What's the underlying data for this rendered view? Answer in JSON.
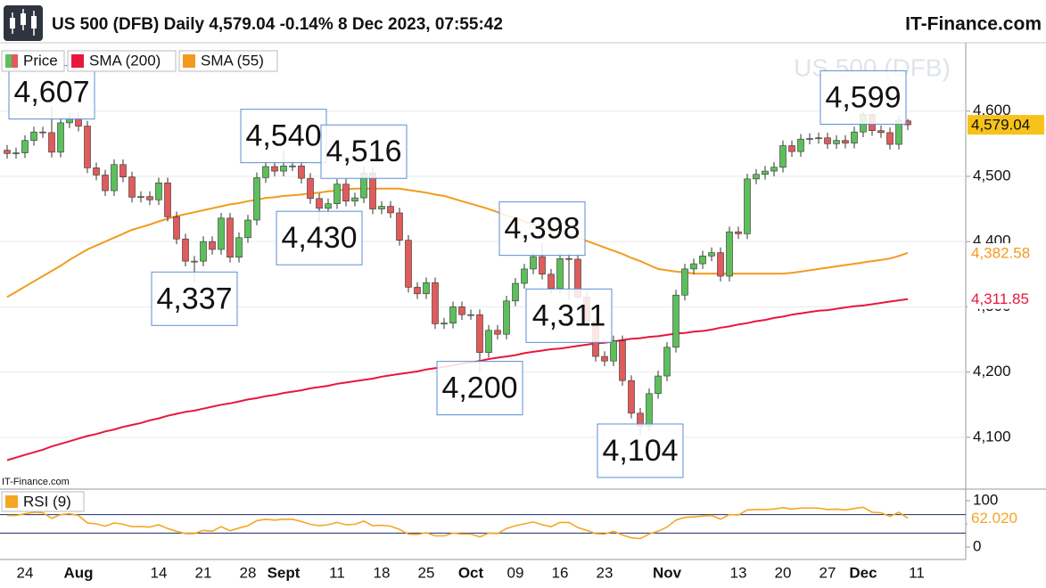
{
  "header": {
    "title": "US 500 (DFB) Daily 4,579.04 -0.14% 8 Dec 2023, 07:55:42",
    "brand": "IT-Finance.com"
  },
  "chart_data": [
    {
      "type": "candlestick",
      "name": "Price",
      "watermark": "US 500 (DFB)",
      "source": "IT-Finance.com",
      "up_color": "#5cbf5c",
      "down_color": "#e05b5b",
      "categories": [
        null,
        null,
        "24",
        null,
        null,
        null,
        null,
        null,
        "Aug",
        null,
        null,
        null,
        null,
        null,
        null,
        null,
        null,
        "14",
        null,
        null,
        null,
        null,
        "21",
        null,
        null,
        null,
        null,
        "28",
        null,
        null,
        null,
        "Sept",
        null,
        null,
        null,
        null,
        null,
        "11",
        null,
        null,
        null,
        null,
        "18",
        null,
        null,
        null,
        null,
        "25",
        null,
        null,
        null,
        null,
        "Oct",
        null,
        null,
        null,
        null,
        "09",
        null,
        null,
        null,
        null,
        "16",
        null,
        null,
        null,
        null,
        "23",
        null,
        null,
        null,
        null,
        null,
        null,
        "Nov",
        null,
        null,
        null,
        null,
        null,
        null,
        null,
        "13",
        null,
        null,
        null,
        null,
        "20",
        null,
        null,
        null,
        null,
        "27",
        null,
        null,
        null,
        "Dec",
        null,
        null,
        null,
        null,
        null,
        "11"
      ],
      "open": [
        4540,
        4535,
        4536,
        4555,
        4568,
        4567,
        4537,
        4582,
        4589,
        4577,
        4513,
        4502,
        4478,
        4518,
        4499,
        4468,
        4469,
        4464,
        4490,
        4438,
        4404,
        4370,
        4370,
        4400,
        4388,
        4436,
        4376,
        4406,
        4433,
        4498,
        4515,
        4508,
        4516,
        4516,
        4497,
        4466,
        4451,
        4458,
        4488,
        4462,
        4467,
        4505,
        4450,
        4454,
        4444,
        4402,
        4330,
        4320,
        4337,
        4274,
        4275,
        4300,
        4288,
        4288,
        4230,
        4264,
        4258,
        4309,
        4336,
        4358,
        4377,
        4350,
        4328,
        4374,
        4373,
        4315,
        4278,
        4224,
        4217,
        4248,
        4187,
        4137,
        4117,
        4167,
        4194,
        4238,
        4318,
        4358,
        4366,
        4378,
        4383,
        4347,
        4415,
        4412,
        4496,
        4503,
        4508,
        4514,
        4547,
        4538,
        4557,
        4558,
        4559,
        4550,
        4555,
        4551,
        4568,
        4595,
        4570,
        4567,
        4549,
        4585,
        null
      ],
      "high": [
        4548,
        4544,
        4563,
        4576,
        4576,
        4607,
        4590,
        4597,
        4597,
        4585,
        4521,
        4510,
        4526,
        4526,
        4507,
        4477,
        4477,
        4498,
        4498,
        4446,
        4412,
        4378,
        4408,
        4408,
        4444,
        4444,
        4414,
        4441,
        4506,
        4523,
        4523,
        4540,
        4524,
        4524,
        4505,
        4474,
        4466,
        4496,
        4496,
        4475,
        4516,
        4513,
        4462,
        4462,
        4452,
        4410,
        4338,
        4345,
        4345,
        4283,
        4308,
        4308,
        4296,
        4296,
        4272,
        4272,
        4317,
        4344,
        4366,
        4385,
        4398,
        4358,
        4382,
        4382,
        4381,
        4323,
        4286,
        4232,
        4256,
        4256,
        4195,
        4145,
        4175,
        4202,
        4246,
        4326,
        4366,
        4374,
        4386,
        4391,
        4391,
        4423,
        4423,
        4504,
        4511,
        4516,
        4522,
        4555,
        4555,
        4565,
        4566,
        4567,
        4567,
        4563,
        4563,
        4576,
        4599,
        4596,
        4578,
        4575,
        4594,
        4588,
        null
      ],
      "low": [
        4527,
        4527,
        4528,
        4547,
        4559,
        4529,
        4529,
        4574,
        4569,
        4505,
        4494,
        4470,
        4470,
        4491,
        4460,
        4460,
        4456,
        4456,
        4431,
        4396,
        4362,
        4337,
        4362,
        4380,
        4380,
        4368,
        4368,
        4398,
        4425,
        4490,
        4500,
        4500,
        4508,
        4489,
        4458,
        4430,
        4443,
        4450,
        4454,
        4454,
        4459,
        4442,
        4442,
        4436,
        4394,
        4322,
        4312,
        4312,
        4266,
        4266,
        4267,
        4280,
        4280,
        4200,
        4222,
        4250,
        4250,
        4301,
        4328,
        4350,
        4342,
        4320,
        4320,
        4311,
        4312,
        4270,
        4216,
        4209,
        4209,
        4179,
        4129,
        4104,
        4109,
        4159,
        4186,
        4230,
        4310,
        4350,
        4358,
        4370,
        4339,
        4339,
        4404,
        4404,
        4488,
        4495,
        4500,
        4506,
        4530,
        4530,
        4549,
        4550,
        4542,
        4542,
        4543,
        4543,
        4560,
        4562,
        4559,
        4541,
        4541,
        4571,
        null
      ],
      "close": [
        4535,
        4536,
        4555,
        4568,
        4567,
        4537,
        4582,
        4589,
        4577,
        4513,
        4502,
        4478,
        4518,
        4499,
        4468,
        4469,
        4464,
        4490,
        4438,
        4404,
        4370,
        4370,
        4400,
        4388,
        4436,
        4376,
        4406,
        4433,
        4498,
        4515,
        4508,
        4516,
        4516,
        4497,
        4466,
        4451,
        4458,
        4488,
        4462,
        4467,
        4505,
        4450,
        4454,
        4444,
        4402,
        4330,
        4320,
        4337,
        4274,
        4275,
        4300,
        4288,
        4288,
        4230,
        4264,
        4258,
        4309,
        4336,
        4358,
        4377,
        4350,
        4328,
        4374,
        4373,
        4315,
        4278,
        4224,
        4217,
        4248,
        4187,
        4137,
        4117,
        4167,
        4194,
        4238,
        4318,
        4358,
        4366,
        4378,
        4383,
        4347,
        4415,
        4412,
        4496,
        4503,
        4508,
        4514,
        4547,
        4538,
        4557,
        4558,
        4559,
        4550,
        4555,
        4551,
        4568,
        4595,
        4570,
        4567,
        4549,
        4586,
        4579.04,
        null
      ],
      "last_label": {
        "value": 4579.04,
        "label": "4,579.04"
      },
      "last_label_color": "#f7c21a",
      "lines": [
        {
          "name": "SMA (200)",
          "color": "#e8173c",
          "values": [
            4065,
            4069,
            4073,
            4077,
            4081,
            4086,
            4090,
            4094,
            4098,
            4102,
            4105,
            4109,
            4112,
            4116,
            4119,
            4122,
            4126,
            4129,
            4133,
            4136,
            4139,
            4141,
            4144,
            4147,
            4150,
            4152,
            4155,
            4158,
            4160,
            4163,
            4165,
            4168,
            4170,
            4172,
            4175,
            4177,
            4179,
            4182,
            4184,
            4186,
            4188,
            4190,
            4193,
            4195,
            4197,
            4199,
            4201,
            4204,
            4206,
            4208,
            4210,
            4213,
            4215,
            4217,
            4220,
            4222,
            4224,
            4226,
            4229,
            4231,
            4233,
            4235,
            4236,
            4238,
            4240,
            4242,
            4244,
            4245,
            4247,
            4249,
            4251,
            4252,
            4254,
            4255,
            4257,
            4259,
            4260,
            4262,
            4263,
            4265,
            4268,
            4270,
            4273,
            4275,
            4278,
            4280,
            4283,
            4285,
            4288,
            4290,
            4292,
            4294,
            4295,
            4297,
            4299,
            4301,
            4302,
            4304,
            4306,
            4308,
            4310,
            4311.85,
            null
          ],
          "last_label": {
            "value": 4311.85,
            "label": "4,311.85"
          }
        },
        {
          "name": "SMA (55)",
          "color": "#f39a1e",
          "values": [
            4315,
            4323,
            4331,
            4339,
            4347,
            4355,
            4363,
            4372,
            4380,
            4388,
            4394,
            4400,
            4406,
            4412,
            4418,
            4422,
            4426,
            4431,
            4435,
            4439,
            4442,
            4445,
            4448,
            4451,
            4454,
            4457,
            4459,
            4462,
            4464,
            4467,
            4468,
            4470,
            4471,
            4472,
            4474,
            4475,
            4477,
            4478,
            4480,
            4481,
            4481,
            4481,
            4481,
            4481,
            4481,
            4479,
            4477,
            4475,
            4472,
            4470,
            4466,
            4462,
            4458,
            4454,
            4450,
            4445,
            4440,
            4436,
            4431,
            4426,
            4422,
            4418,
            4414,
            4410,
            4406,
            4401,
            4396,
            4391,
            4386,
            4381,
            4375,
            4370,
            4364,
            4358,
            4356,
            4354,
            4353,
            4351,
            4351,
            4351,
            4351,
            4351,
            4351,
            4351,
            4351,
            4351,
            4351,
            4351,
            4352,
            4354,
            4356,
            4358,
            4360,
            4362,
            4364,
            4366,
            4368,
            4370,
            4372,
            4374,
            4378,
            4382.58,
            null
          ],
          "last_label": {
            "value": 4382.58,
            "label": "4,382.58"
          }
        }
      ],
      "annotations": [
        {
          "value": 4607,
          "label": "4,607"
        },
        {
          "value": 4540,
          "label": "4,540"
        },
        {
          "value": 4516,
          "label": "4,516"
        },
        {
          "value": 4430,
          "label": "4,430"
        },
        {
          "value": 4337,
          "label": "4,337"
        },
        {
          "value": 4398,
          "label": "4,398"
        },
        {
          "value": 4311,
          "label": "4,311"
        },
        {
          "value": 4200,
          "label": "4,200"
        },
        {
          "value": 4104,
          "label": "4,104"
        },
        {
          "value": 4599,
          "label": "4,599"
        }
      ],
      "ylim": [
        4022,
        4702
      ],
      "yticks": [
        {
          "value": 4100,
          "label": "4,100"
        },
        {
          "value": 4200,
          "label": "4,200"
        },
        {
          "value": 4300,
          "label": "4,300"
        },
        {
          "value": 4400,
          "label": "4,400"
        },
        {
          "value": 4500,
          "label": "4,500"
        },
        {
          "value": 4600,
          "label": "4,600"
        }
      ],
      "grid": true
    },
    {
      "type": "line",
      "series": [
        {
          "name": "RSI (9)",
          "color": "#f5a623",
          "values": [
            68,
            68,
            72,
            75,
            74,
            62,
            70,
            72,
            68,
            52,
            50,
            45,
            52,
            49,
            44,
            44,
            43,
            48,
            40,
            34,
            29,
            29,
            36,
            34,
            44,
            35,
            41,
            46,
            57,
            60,
            58,
            60,
            60,
            55,
            49,
            46,
            48,
            53,
            48,
            49,
            56,
            46,
            47,
            45,
            38,
            28,
            27,
            31,
            24,
            24,
            30,
            28,
            28,
            22,
            30,
            29,
            40,
            46,
            50,
            54,
            48,
            44,
            53,
            53,
            42,
            36,
            29,
            28,
            34,
            26,
            20,
            18,
            28,
            34,
            43,
            58,
            64,
            65,
            67,
            68,
            60,
            70,
            69,
            80,
            81,
            81,
            82,
            85,
            82,
            84,
            84,
            84,
            81,
            82,
            80,
            83,
            86,
            75,
            74,
            66,
            75,
            62.02,
            null
          ],
          "last_label": {
            "value": 62.02,
            "label": "62.020"
          }
        }
      ],
      "levels": [
        30,
        70
      ],
      "level_color": "#1f2a6b",
      "ylim": [
        0,
        100
      ],
      "yticks": [
        0,
        50,
        100
      ]
    }
  ]
}
